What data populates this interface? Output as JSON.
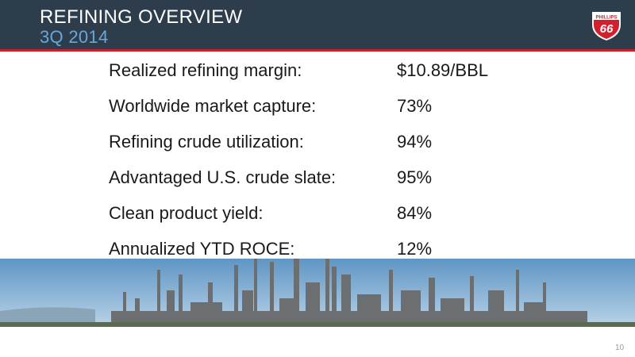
{
  "header": {
    "title": "REFINING OVERVIEW",
    "subtitle": "3Q 2014",
    "logo_top": "PHILLIPS",
    "logo_number": "66"
  },
  "rows": [
    {
      "label": "Realized refining margin:",
      "value": "$10.89/BBL"
    },
    {
      "label": "Worldwide market capture:",
      "value": "73%"
    },
    {
      "label": "Refining crude utilization:",
      "value": "94%"
    },
    {
      "label": "Advantaged U.S. crude slate:",
      "value": "95%"
    },
    {
      "label": "Clean product yield:",
      "value": "84%"
    },
    {
      "label": "Annualized YTD ROCE:",
      "value": "12%"
    }
  ],
  "page_number": "10"
}
